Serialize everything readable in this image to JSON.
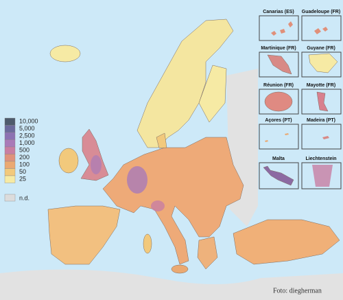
{
  "legend": [
    {
      "label": "10,000",
      "color": "#4e5b6c"
    },
    {
      "label": "5,000",
      "color": "#6c6a9c"
    },
    {
      "label": "2,500",
      "color": "#8c72b2"
    },
    {
      "label": "1,000",
      "color": "#a97ab8"
    },
    {
      "label": "500",
      "color": "#c87ea2"
    },
    {
      "label": "200",
      "color": "#df927c"
    },
    {
      "label": "100",
      "color": "#eaa972"
    },
    {
      "label": "50",
      "color": "#f2c97c"
    },
    {
      "label": "25",
      "color": "#f6eaa4"
    }
  ],
  "no_data": {
    "label": "n.d.",
    "color": "#dcdcdc"
  },
  "insets": [
    "Canarias (ES)",
    "Guadeloupe (FR)",
    "Martinique (FR)",
    "Guyane (FR)",
    "Réunion (FR)",
    "Mayotte (FR)",
    "Açores (PT)",
    "Madeira (PT)",
    "Malta",
    "Liechtenstein"
  ],
  "credit": "Foto: diegherman"
}
